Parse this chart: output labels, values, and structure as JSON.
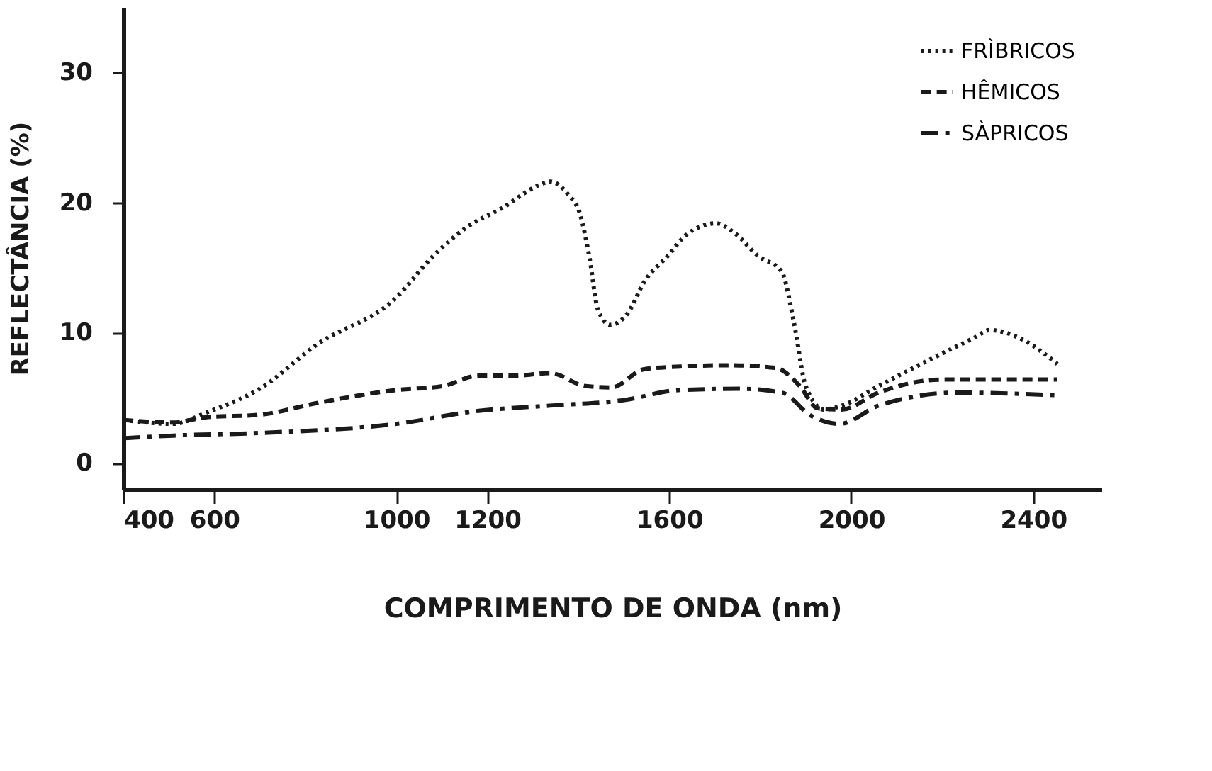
{
  "chart_data": {
    "type": "line",
    "xlabel": "COMPRIMENTO DE ONDA (nm)",
    "ylabel": "REFLECTÂNCIA (%)",
    "xlim": [
      400,
      2550
    ],
    "xticks": [
      400,
      600,
      1000,
      1200,
      1600,
      2000,
      2400
    ],
    "ylim": [
      -2,
      35
    ],
    "yticks": [
      0,
      10,
      20,
      30
    ],
    "grid": false,
    "legend": "top right",
    "marker": "none",
    "series": [
      {
        "name": "FRÌBRICOS",
        "color": "#1a1a1a",
        "line_style": "dotted",
        "x": [
          400,
          510,
          585,
          700,
          826,
          1000,
          1076,
          1155,
          1234,
          1312,
          1338,
          1378,
          1404,
          1425,
          1443,
          1470,
          1509,
          1545,
          1597,
          1637,
          1703,
          1742,
          1795,
          1847,
          1874,
          1900,
          1940,
          1979,
          2060,
          2165,
          2270,
          2305,
          2375,
          2453
        ],
        "values": [
          3.3,
          3.0,
          3.9,
          5.7,
          9.1,
          12.7,
          15.7,
          18.1,
          19.6,
          21.3,
          21.6,
          20.6,
          19.1,
          15.7,
          11.8,
          10.6,
          11.5,
          13.9,
          15.9,
          17.5,
          18.4,
          17.7,
          15.9,
          14.7,
          10.8,
          5.9,
          4.1,
          4.4,
          5.9,
          7.8,
          9.6,
          10.2,
          9.5,
          7.6
        ]
      },
      {
        "name": "HÊMICOS",
        "color": "#1a1a1a",
        "line_style": "dashed",
        "x": [
          400,
          510,
          580,
          700,
          826,
          1000,
          1102,
          1181,
          1260,
          1338,
          1416,
          1473,
          1545,
          1624,
          1729,
          1834,
          1887,
          1926,
          1979,
          2060,
          2200,
          2453
        ],
        "values": [
          3.3,
          3.1,
          3.5,
          3.7,
          4.6,
          5.6,
          5.9,
          6.7,
          6.7,
          6.9,
          5.9,
          5.8,
          7.2,
          7.4,
          7.5,
          7.3,
          5.9,
          4.2,
          4.1,
          5.4,
          6.4,
          6.4
        ]
      },
      {
        "name": "SÀPRICOS",
        "color": "#1a1a1a",
        "line_style": "dashdot",
        "x": [
          400,
          510,
          700,
          1000,
          1181,
          1338,
          1496,
          1624,
          1755,
          1847,
          1913,
          1975,
          2060,
          2235,
          2453
        ],
        "values": [
          1.9,
          2.1,
          2.3,
          3.0,
          4.0,
          4.4,
          4.8,
          5.6,
          5.7,
          5.4,
          3.6,
          3.0,
          4.4,
          5.4,
          5.2
        ]
      }
    ]
  }
}
